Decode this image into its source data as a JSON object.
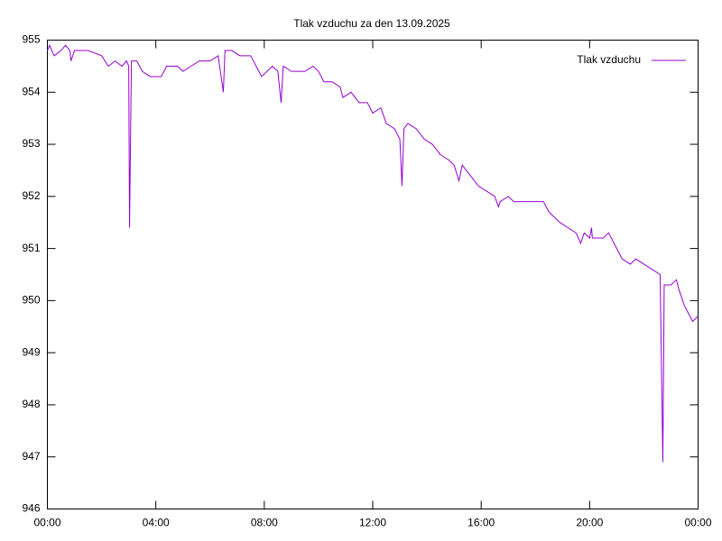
{
  "chart_data": {
    "type": "line",
    "title": "Tlak vzduchu za den 13.09.2025",
    "x": [
      0,
      0.08,
      0.25,
      0.5,
      0.67,
      0.83,
      0.87,
      1.0,
      1.5,
      2.0,
      2.25,
      2.5,
      2.75,
      2.92,
      3.0,
      3.03,
      3.1,
      3.3,
      3.5,
      3.8,
      4.2,
      4.4,
      4.8,
      5.0,
      5.3,
      5.6,
      6.0,
      6.3,
      6.49,
      6.55,
      6.8,
      7.1,
      7.5,
      7.7,
      7.9,
      8.1,
      8.3,
      8.5,
      8.62,
      8.7,
      9.0,
      9.5,
      9.8,
      10.0,
      10.2,
      10.5,
      10.8,
      10.9,
      11.2,
      11.5,
      11.8,
      12.0,
      12.3,
      12.5,
      12.8,
      13.0,
      13.08,
      13.15,
      13.3,
      13.6,
      13.9,
      14.2,
      14.5,
      14.8,
      15.0,
      15.18,
      15.3,
      15.6,
      15.9,
      16.2,
      16.5,
      16.64,
      16.7,
      17.0,
      17.2,
      17.5,
      18.0,
      18.3,
      18.5,
      18.9,
      19.2,
      19.5,
      19.67,
      19.8,
      20.0,
      20.07,
      20.1,
      20.5,
      20.7,
      21.0,
      21.2,
      21.5,
      21.7,
      22.0,
      22.3,
      22.6,
      22.7,
      22.75,
      23.0,
      23.2,
      23.3,
      23.5,
      23.7,
      23.8,
      24.0
    ],
    "series": [
      {
        "name": "Tlak vzduchu",
        "color": "#9400d3",
        "values": [
          954.8,
          954.9,
          954.7,
          954.8,
          954.9,
          954.8,
          954.6,
          954.8,
          954.8,
          954.7,
          954.5,
          954.6,
          954.5,
          954.6,
          954.5,
          951.4,
          954.6,
          954.6,
          954.4,
          954.3,
          954.3,
          954.5,
          954.5,
          954.4,
          954.5,
          954.6,
          954.6,
          954.7,
          954.0,
          954.8,
          954.8,
          954.7,
          954.7,
          954.5,
          954.3,
          954.4,
          954.5,
          954.4,
          953.8,
          954.5,
          954.4,
          954.4,
          954.5,
          954.4,
          954.2,
          954.2,
          954.1,
          953.9,
          954.0,
          953.8,
          953.8,
          953.6,
          953.7,
          953.4,
          953.3,
          953.1,
          952.2,
          953.3,
          953.4,
          953.3,
          953.1,
          953.0,
          952.8,
          952.7,
          952.6,
          952.3,
          952.6,
          952.4,
          952.2,
          952.1,
          952.0,
          951.8,
          951.9,
          952.0,
          951.9,
          951.9,
          951.9,
          951.9,
          951.7,
          951.5,
          951.4,
          951.3,
          951.1,
          951.3,
          951.2,
          951.4,
          951.2,
          951.2,
          951.3,
          951.0,
          950.8,
          950.7,
          950.8,
          950.7,
          950.6,
          950.5,
          946.9,
          950.3,
          950.3,
          950.4,
          950.2,
          949.9,
          949.7,
          949.6,
          949.7
        ]
      }
    ],
    "xlim": [
      0,
      24
    ],
    "xticks": [
      {
        "value": 0,
        "label": "00:00"
      },
      {
        "value": 4,
        "label": "04:00"
      },
      {
        "value": 8,
        "label": "08:00"
      },
      {
        "value": 12,
        "label": "12:00"
      },
      {
        "value": 16,
        "label": "16:00"
      },
      {
        "value": 20,
        "label": "20:00"
      },
      {
        "value": 24,
        "label": "00:00"
      }
    ],
    "ylim": [
      946,
      955
    ],
    "yticks": [
      946,
      947,
      948,
      949,
      950,
      951,
      952,
      953,
      954,
      955
    ],
    "legend": "top-right",
    "grid": false
  }
}
